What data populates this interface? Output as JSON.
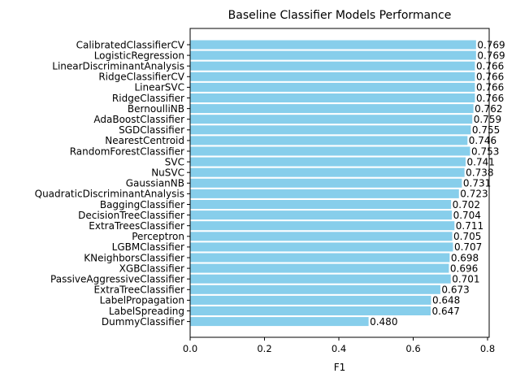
{
  "chart_data": {
    "type": "bar",
    "orientation": "horizontal",
    "title": "Baseline Classifier Models Performance",
    "xlabel": "F1",
    "ylabel": "",
    "xlim": [
      0,
      0.8
    ],
    "xticks": [
      "0.0",
      "0.2",
      "0.4",
      "0.6",
      "0.8"
    ],
    "xtick_values": [
      0,
      0.2,
      0.4,
      0.6,
      0.8
    ],
    "categories": [
      "CalibratedClassifierCV",
      "LogisticRegression",
      "LinearDiscriminantAnalysis",
      "RidgeClassifierCV",
      "LinearSVC",
      "RidgeClassifier",
      "BernoulliNB",
      "AdaBoostClassifier",
      "SGDClassifier",
      "NearestCentroid",
      "RandomForestClassifier",
      "SVC",
      "NuSVC",
      "GaussianNB",
      "QuadraticDiscriminantAnalysis",
      "BaggingClassifier",
      "DecisionTreeClassifier",
      "ExtraTreesClassifier",
      "Perceptron",
      "LGBMClassifier",
      "KNeighborsClassifier",
      "XGBClassifier",
      "PassiveAggressiveClassifier",
      "ExtraTreeClassifier",
      "LabelPropagation",
      "LabelSpreading",
      "DummyClassifier"
    ],
    "values": [
      0.769,
      0.769,
      0.766,
      0.766,
      0.766,
      0.766,
      0.762,
      0.759,
      0.755,
      0.746,
      0.753,
      0.741,
      0.738,
      0.731,
      0.723,
      0.702,
      0.704,
      0.711,
      0.705,
      0.707,
      0.698,
      0.696,
      0.701,
      0.673,
      0.648,
      0.647,
      0.48
    ],
    "value_labels": [
      "0.769",
      "0.769",
      "0.766",
      "0.766",
      "0.766",
      "0.766",
      "0.762",
      "0.759",
      "0.755",
      "0.746",
      "0.753",
      "0.741",
      "0.738",
      "0.731",
      "0.723",
      "0.702",
      "0.704",
      "0.711",
      "0.705",
      "0.707",
      "0.698",
      "0.696",
      "0.701",
      "0.673",
      "0.648",
      "0.647",
      "0.480"
    ],
    "bar_color": "#87ceeb",
    "grid": false,
    "legend": "none"
  }
}
